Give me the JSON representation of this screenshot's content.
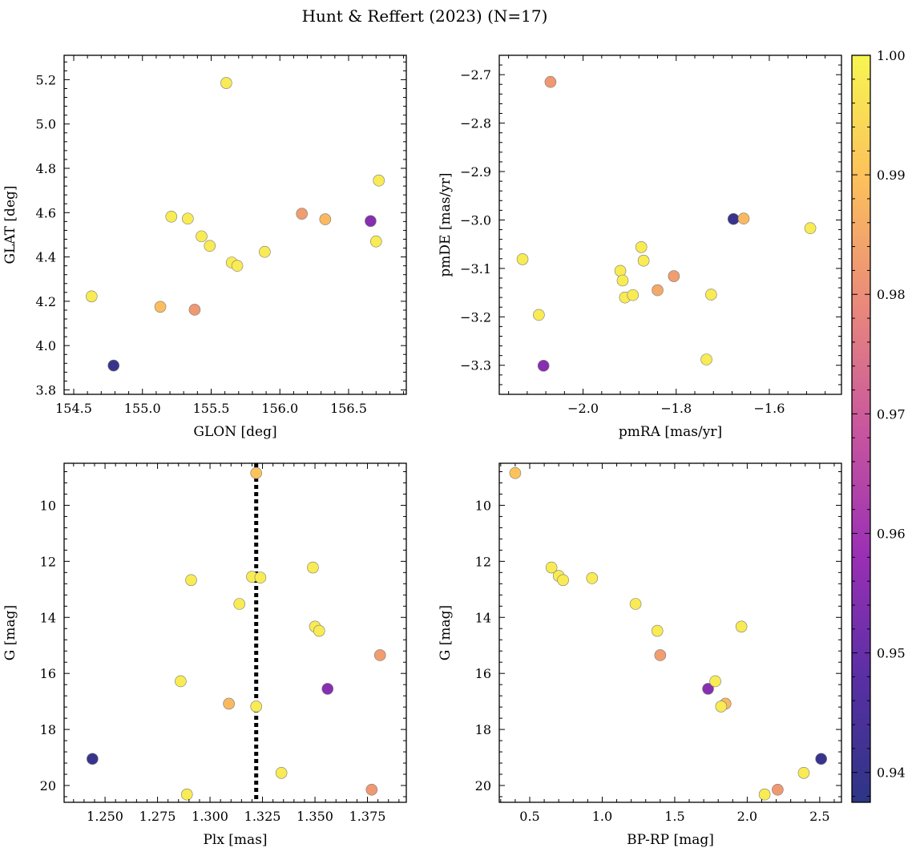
{
  "title": "Hunt & Reffert (2023) (N=17)",
  "chart_data": [
    {
      "type": "scatter",
      "xlabel": "GLON [deg]",
      "ylabel": "GLAT [deg]",
      "xlim": [
        154.43,
        156.92
      ],
      "ylim": [
        3.78,
        5.31
      ],
      "xticks": [
        154.5,
        155.0,
        155.5,
        156.0,
        156.5
      ],
      "xtick_labels": [
        "154.5",
        "155.0",
        "155.5",
        "156.0",
        "156.5"
      ],
      "yticks": [
        3.8,
        4.0,
        4.2,
        4.4,
        4.6,
        4.8,
        5.0,
        5.2
      ],
      "ytick_labels": [
        "3.8",
        "4.0",
        "4.2",
        "4.4",
        "4.6",
        "4.8",
        "5.0",
        "5.2"
      ],
      "y_inverted": false,
      "points": [
        {
          "x": 155.61,
          "y": 5.185,
          "c": 0.998
        },
        {
          "x": 156.72,
          "y": 4.745,
          "c": 0.998
        },
        {
          "x": 156.16,
          "y": 4.595,
          "c": 0.983
        },
        {
          "x": 156.33,
          "y": 4.57,
          "c": 0.988
        },
        {
          "x": 156.66,
          "y": 4.562,
          "c": 0.955
        },
        {
          "x": 155.21,
          "y": 4.582,
          "c": 0.998
        },
        {
          "x": 155.33,
          "y": 4.573,
          "c": 0.998
        },
        {
          "x": 155.43,
          "y": 4.493,
          "c": 0.998
        },
        {
          "x": 156.7,
          "y": 4.47,
          "c": 0.998
        },
        {
          "x": 155.49,
          "y": 4.45,
          "c": 0.998
        },
        {
          "x": 155.89,
          "y": 4.423,
          "c": 0.998
        },
        {
          "x": 155.65,
          "y": 4.375,
          "c": 0.998
        },
        {
          "x": 155.69,
          "y": 4.36,
          "c": 0.998
        },
        {
          "x": 154.63,
          "y": 4.222,
          "c": 0.998
        },
        {
          "x": 155.13,
          "y": 4.175,
          "c": 0.989
        },
        {
          "x": 155.38,
          "y": 4.162,
          "c": 0.982
        },
        {
          "x": 154.79,
          "y": 3.91,
          "c": 0.94
        }
      ]
    },
    {
      "type": "scatter",
      "xlabel": "pmRA [mas/yr]",
      "ylabel": "pmDE [mas/yr]",
      "xlim": [
        -2.18,
        -1.445
      ],
      "ylim": [
        -3.36,
        -2.66
      ],
      "xticks": [
        -2.0,
        -1.8,
        -1.6
      ],
      "xtick_labels": [
        "−2.0",
        "−1.8",
        "−1.6"
      ],
      "yticks": [
        -3.3,
        -3.2,
        -3.1,
        -3.0,
        -2.9,
        -2.8,
        -2.7
      ],
      "ytick_labels": [
        "−3.3",
        "−3.2",
        "−3.1",
        "−3.0",
        "−2.9",
        "−2.8",
        "−2.7"
      ],
      "y_inverted": false,
      "points": [
        {
          "x": -2.07,
          "y": -2.715,
          "c": 0.982
        },
        {
          "x": -1.677,
          "y": -2.998,
          "c": 0.94
        },
        {
          "x": -1.655,
          "y": -2.997,
          "c": 0.988
        },
        {
          "x": -1.512,
          "y": -3.017,
          "c": 0.998
        },
        {
          "x": -2.13,
          "y": -3.081,
          "c": 0.998
        },
        {
          "x": -1.875,
          "y": -3.056,
          "c": 0.998
        },
        {
          "x": -1.87,
          "y": -3.084,
          "c": 0.998
        },
        {
          "x": -1.92,
          "y": -3.105,
          "c": 0.998
        },
        {
          "x": -1.915,
          "y": -3.125,
          "c": 0.998
        },
        {
          "x": -1.805,
          "y": -3.116,
          "c": 0.983
        },
        {
          "x": -1.84,
          "y": -3.145,
          "c": 0.985
        },
        {
          "x": -1.91,
          "y": -3.16,
          "c": 0.998
        },
        {
          "x": -1.893,
          "y": -3.155,
          "c": 0.998
        },
        {
          "x": -1.725,
          "y": -3.154,
          "c": 0.998
        },
        {
          "x": -2.095,
          "y": -3.196,
          "c": 0.998
        },
        {
          "x": -1.735,
          "y": -3.288,
          "c": 0.998
        },
        {
          "x": -2.085,
          "y": -3.301,
          "c": 0.955
        }
      ]
    },
    {
      "type": "scatter",
      "xlabel": "Plx [mas]",
      "ylabel": "G [mag]",
      "xlim": [
        1.2305,
        1.3935
      ],
      "ylim": [
        8.5,
        20.6
      ],
      "xticks": [
        1.25,
        1.275,
        1.3,
        1.325,
        1.35,
        1.375
      ],
      "xtick_labels": [
        "1.250",
        "1.275",
        "1.300",
        "1.325",
        "1.350",
        "1.375"
      ],
      "yticks": [
        10,
        12,
        14,
        16,
        18,
        20
      ],
      "ytick_labels": [
        "10",
        "12",
        "14",
        "16",
        "18",
        "20"
      ],
      "y_inverted": true,
      "vline": 1.322,
      "points": [
        {
          "x": 1.322,
          "y": 8.85,
          "c": 0.99
        },
        {
          "x": 1.349,
          "y": 12.22,
          "c": 0.998
        },
        {
          "x": 1.32,
          "y": 12.55,
          "c": 0.998
        },
        {
          "x": 1.324,
          "y": 12.58,
          "c": 0.998
        },
        {
          "x": 1.291,
          "y": 12.67,
          "c": 0.998
        },
        {
          "x": 1.314,
          "y": 13.52,
          "c": 0.998
        },
        {
          "x": 1.35,
          "y": 14.33,
          "c": 0.998
        },
        {
          "x": 1.352,
          "y": 14.48,
          "c": 0.998
        },
        {
          "x": 1.381,
          "y": 15.35,
          "c": 0.983
        },
        {
          "x": 1.286,
          "y": 16.28,
          "c": 0.998
        },
        {
          "x": 1.356,
          "y": 16.55,
          "c": 0.955
        },
        {
          "x": 1.309,
          "y": 17.08,
          "c": 0.988
        },
        {
          "x": 1.322,
          "y": 17.18,
          "c": 0.998
        },
        {
          "x": 1.244,
          "y": 19.05,
          "c": 0.94
        },
        {
          "x": 1.334,
          "y": 19.55,
          "c": 0.998
        },
        {
          "x": 1.289,
          "y": 20.32,
          "c": 0.998
        },
        {
          "x": 1.377,
          "y": 20.15,
          "c": 0.982
        }
      ]
    },
    {
      "type": "scatter",
      "xlabel": "BP-RP [mag]",
      "ylabel": "G [mag]",
      "xlim": [
        0.29,
        2.65
      ],
      "ylim": [
        8.5,
        20.6
      ],
      "xticks": [
        0.5,
        1.0,
        1.5,
        2.0,
        2.5
      ],
      "xtick_labels": [
        "0.5",
        "1.0",
        "1.5",
        "2.0",
        "2.5"
      ],
      "yticks": [
        10,
        12,
        14,
        16,
        18,
        20
      ],
      "ytick_labels": [
        "10",
        "12",
        "14",
        "16",
        "18",
        "20"
      ],
      "y_inverted": true,
      "points": [
        {
          "x": 0.4,
          "y": 8.85,
          "c": 0.99
        },
        {
          "x": 0.65,
          "y": 12.22,
          "c": 0.998
        },
        {
          "x": 0.7,
          "y": 12.52,
          "c": 0.998
        },
        {
          "x": 0.73,
          "y": 12.67,
          "c": 0.998
        },
        {
          "x": 0.93,
          "y": 12.6,
          "c": 0.998
        },
        {
          "x": 1.23,
          "y": 13.52,
          "c": 0.998
        },
        {
          "x": 1.38,
          "y": 14.48,
          "c": 0.998
        },
        {
          "x": 1.4,
          "y": 15.35,
          "c": 0.983
        },
        {
          "x": 1.96,
          "y": 14.33,
          "c": 0.998
        },
        {
          "x": 1.73,
          "y": 16.55,
          "c": 0.955
        },
        {
          "x": 1.78,
          "y": 16.28,
          "c": 0.998
        },
        {
          "x": 1.85,
          "y": 17.08,
          "c": 0.988
        },
        {
          "x": 1.82,
          "y": 17.18,
          "c": 0.998
        },
        {
          "x": 2.51,
          "y": 19.05,
          "c": 0.94
        },
        {
          "x": 2.39,
          "y": 19.55,
          "c": 0.998
        },
        {
          "x": 2.12,
          "y": 20.32,
          "c": 0.998
        },
        {
          "x": 2.21,
          "y": 20.15,
          "c": 0.982
        }
      ]
    }
  ],
  "colorbar": {
    "colormap": "plasma",
    "range": [
      0.9375,
      1.0
    ],
    "ticks": [
      0.94,
      0.95,
      0.96,
      0.97,
      0.98,
      0.99,
      1.0
    ],
    "tick_labels": [
      "0.94",
      "0.95",
      "0.96",
      "0.97",
      "0.98",
      "0.99",
      "1.00"
    ]
  }
}
